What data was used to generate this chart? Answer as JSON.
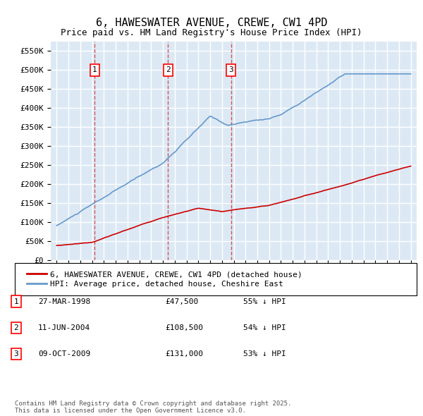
{
  "title": "6, HAWESWATER AVENUE, CREWE, CW1 4PD",
  "subtitle": "Price paid vs. HM Land Registry's House Price Index (HPI)",
  "background_color": "#dce9f5",
  "plot_bg_color": "#dce9f5",
  "grid_color": "#ffffff",
  "legend_label_red": "6, HAWESWATER AVENUE, CREWE, CW1 4PD (detached house)",
  "legend_label_blue": "HPI: Average price, detached house, Cheshire East",
  "footer": "Contains HM Land Registry data © Crown copyright and database right 2025.\nThis data is licensed under the Open Government Licence v3.0.",
  "purchases": [
    {
      "num": 1,
      "date": "27-MAR-1998",
      "price": "£47,500",
      "pct": "55% ↓ HPI",
      "year": 1998.23
    },
    {
      "num": 2,
      "date": "11-JUN-2004",
      "price": "£108,500",
      "pct": "54% ↓ HPI",
      "year": 2004.44
    },
    {
      "num": 3,
      "date": "09-OCT-2009",
      "price": "£131,000",
      "pct": "53% ↓ HPI",
      "year": 2009.77
    }
  ],
  "ylim": [
    0,
    575000
  ],
  "yticks": [
    0,
    50000,
    100000,
    150000,
    200000,
    250000,
    300000,
    350000,
    400000,
    450000,
    500000,
    550000
  ],
  "xlim_start": 1994.5,
  "xlim_end": 2025.5,
  "red_color": "#cc0000",
  "blue_color": "#6699cc",
  "vline_color": "#cc3333"
}
